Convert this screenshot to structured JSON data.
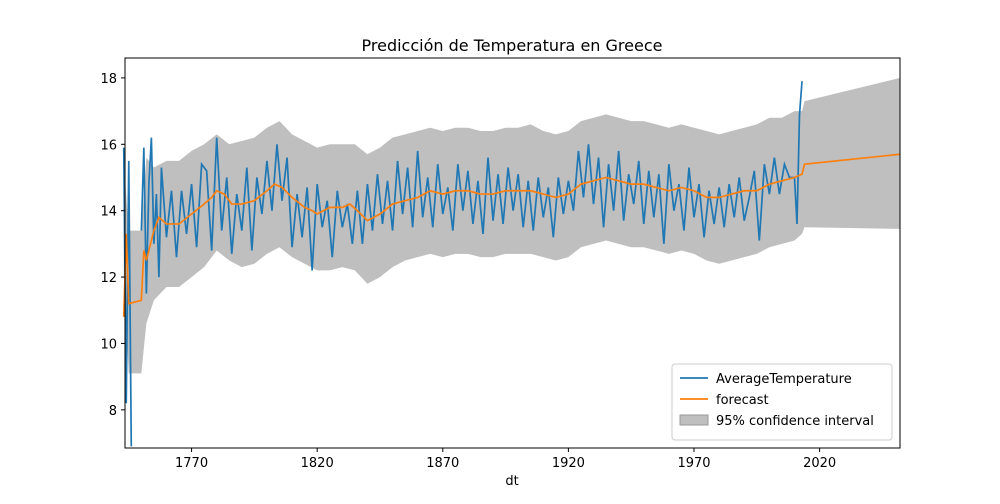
{
  "chart_data": {
    "type": "line",
    "title": "Predicción de Temperatura en Greece",
    "x_label": "dt",
    "xlim": [
      1743.5,
      2052
    ],
    "ylim": [
      6.85,
      18.6
    ],
    "xticks": [
      1770,
      1820,
      1870,
      1920,
      1970,
      2020
    ],
    "yticks": [
      8,
      10,
      12,
      14,
      16,
      18
    ],
    "legend": "lower right",
    "series": [
      {
        "name": "AverageTemperature",
        "color": "#1f77b4",
        "x": [
          1743,
          1744,
          1745,
          1746,
          1748,
          1750,
          1751,
          1752,
          1753,
          1754,
          1755,
          1756,
          1757,
          1758,
          1760,
          1762,
          1764,
          1766,
          1768,
          1770,
          1772,
          1774,
          1776,
          1778,
          1780,
          1782,
          1784,
          1786,
          1788,
          1790,
          1792,
          1794,
          1796,
          1798,
          1800,
          1802,
          1804,
          1806,
          1808,
          1810,
          1812,
          1814,
          1816,
          1818,
          1820,
          1822,
          1824,
          1826,
          1828,
          1830,
          1832,
          1834,
          1836,
          1838,
          1840,
          1842,
          1844,
          1846,
          1848,
          1850,
          1852,
          1854,
          1856,
          1858,
          1860,
          1862,
          1864,
          1866,
          1868,
          1870,
          1872,
          1874,
          1876,
          1878,
          1880,
          1882,
          1884,
          1886,
          1888,
          1890,
          1892,
          1894,
          1896,
          1898,
          1900,
          1902,
          1904,
          1906,
          1908,
          1910,
          1912,
          1914,
          1916,
          1918,
          1920,
          1922,
          1924,
          1926,
          1928,
          1930,
          1932,
          1934,
          1936,
          1938,
          1940,
          1942,
          1944,
          1946,
          1948,
          1950,
          1952,
          1954,
          1956,
          1958,
          1960,
          1962,
          1964,
          1966,
          1968,
          1970,
          1972,
          1974,
          1976,
          1978,
          1980,
          1982,
          1984,
          1986,
          1988,
          1990,
          1992,
          1994,
          1996,
          1998,
          2000,
          2002,
          2004,
          2006,
          2008,
          2010,
          2011,
          2012,
          2013
        ],
        "values": [
          15.9,
          8.2,
          15.5,
          6.9,
          null,
          13.4,
          15.9,
          11.5,
          14.8,
          16.2,
          13.0,
          14.5,
          12.0,
          15.3,
          13.2,
          14.6,
          12.6,
          14.6,
          13.3,
          14.8,
          12.9,
          15.4,
          15.2,
          12.8,
          16.2,
          13.4,
          15.0,
          12.7,
          14.5,
          13.4,
          15.3,
          12.8,
          15.0,
          13.9,
          15.5,
          14.0,
          16.0,
          14.3,
          15.6,
          12.9,
          14.5,
          13.2,
          14.7,
          12.2,
          14.8,
          13.5,
          14.3,
          12.6,
          14.6,
          13.5,
          14.2,
          13.0,
          14.6,
          13.0,
          14.8,
          13.4,
          15.1,
          13.6,
          14.9,
          13.4,
          15.5,
          13.9,
          15.3,
          13.5,
          15.8,
          13.8,
          15.0,
          13.5,
          15.4,
          13.9,
          14.7,
          13.4,
          15.4,
          14.0,
          15.2,
          13.6,
          14.9,
          13.3,
          15.6,
          13.7,
          15.1,
          13.6,
          15.3,
          14.0,
          15.1,
          13.5,
          14.9,
          13.4,
          15.0,
          13.8,
          14.7,
          13.2,
          15.0,
          13.9,
          14.9,
          14.0,
          15.8,
          14.4,
          16.0,
          14.2,
          15.6,
          13.5,
          15.4,
          14.0,
          15.8,
          13.7,
          15.1,
          14.2,
          15.5,
          13.6,
          15.2,
          13.8,
          15.1,
          13.0,
          15.4,
          14.0,
          14.8,
          13.4,
          15.3,
          13.8,
          14.8,
          13.2,
          14.6,
          13.6,
          14.7,
          13.5,
          14.8,
          13.8,
          15.0,
          13.7,
          14.4,
          15.2,
          13.1,
          15.4,
          14.5,
          15.6,
          14.5,
          15.4,
          15.0,
          15.0,
          13.6,
          16.9,
          17.9
        ]
      },
      {
        "name": "forecast",
        "color": "#ff7f0e",
        "x": [
          1743,
          1744,
          1745,
          1750,
          1751,
          1752,
          1755,
          1757,
          1760,
          1765,
          1770,
          1775,
          1778,
          1780,
          1783,
          1786,
          1790,
          1795,
          1800,
          1803,
          1806,
          1810,
          1815,
          1818,
          1820,
          1825,
          1830,
          1833,
          1836,
          1840,
          1845,
          1850,
          1855,
          1860,
          1865,
          1870,
          1875,
          1880,
          1885,
          1890,
          1895,
          1900,
          1905,
          1910,
          1915,
          1920,
          1925,
          1930,
          1935,
          1940,
          1945,
          1950,
          1955,
          1960,
          1965,
          1970,
          1975,
          1980,
          1985,
          1990,
          1995,
          2000,
          2005,
          2010,
          2013,
          2014,
          2052
        ],
        "values": [
          10.8,
          13.3,
          11.2,
          11.3,
          12.8,
          12.5,
          13.4,
          13.8,
          13.6,
          13.6,
          13.9,
          14.2,
          14.4,
          14.6,
          14.5,
          14.2,
          14.2,
          14.3,
          14.6,
          14.8,
          14.7,
          14.4,
          14.1,
          14.0,
          13.9,
          14.1,
          14.1,
          14.2,
          14.0,
          13.7,
          13.9,
          14.2,
          14.3,
          14.4,
          14.6,
          14.5,
          14.6,
          14.6,
          14.5,
          14.5,
          14.6,
          14.6,
          14.6,
          14.5,
          14.4,
          14.5,
          14.8,
          14.9,
          15.0,
          14.9,
          14.8,
          14.8,
          14.7,
          14.6,
          14.7,
          14.6,
          14.4,
          14.4,
          14.5,
          14.6,
          14.6,
          14.8,
          14.9,
          15.0,
          15.1,
          15.4,
          15.7
        ]
      },
      {
        "name": "95% confidence interval",
        "color": "#bfbfbf",
        "x": [
          1743,
          1745,
          1746,
          1750,
          1752,
          1755,
          1760,
          1765,
          1770,
          1775,
          1780,
          1785,
          1790,
          1795,
          1800,
          1805,
          1810,
          1815,
          1820,
          1825,
          1830,
          1835,
          1840,
          1845,
          1850,
          1855,
          1860,
          1865,
          1870,
          1875,
          1880,
          1885,
          1890,
          1895,
          1900,
          1905,
          1910,
          1915,
          1920,
          1925,
          1930,
          1935,
          1940,
          1945,
          1950,
          1955,
          1960,
          1965,
          1970,
          1975,
          1980,
          1985,
          1990,
          1995,
          2000,
          2005,
          2010,
          2013,
          2014,
          2052
        ],
        "upper": [
          15.5,
          13.4,
          13.4,
          13.4,
          15.6,
          15.3,
          15.5,
          15.5,
          15.8,
          16.0,
          16.3,
          16.0,
          16.1,
          16.2,
          16.5,
          16.7,
          16.3,
          16.1,
          15.9,
          16.0,
          16.0,
          16.0,
          15.7,
          15.9,
          16.2,
          16.3,
          16.4,
          16.5,
          16.4,
          16.5,
          16.5,
          16.4,
          16.4,
          16.5,
          16.5,
          16.6,
          16.4,
          16.3,
          16.4,
          16.7,
          16.8,
          16.9,
          16.8,
          16.7,
          16.7,
          16.6,
          16.5,
          16.6,
          16.5,
          16.4,
          16.3,
          16.4,
          16.5,
          16.6,
          16.8,
          16.8,
          17.0,
          17.0,
          17.3,
          18.0
        ],
        "lower": [
          12.0,
          9.1,
          9.1,
          9.1,
          10.6,
          11.3,
          11.7,
          11.7,
          12.0,
          12.3,
          12.8,
          12.5,
          12.3,
          12.4,
          12.7,
          12.9,
          12.6,
          12.4,
          12.2,
          12.2,
          12.3,
          12.2,
          11.8,
          12.0,
          12.3,
          12.5,
          12.6,
          12.7,
          12.6,
          12.7,
          12.7,
          12.6,
          12.6,
          12.7,
          12.7,
          12.7,
          12.6,
          12.5,
          12.6,
          12.9,
          13.0,
          13.1,
          13.0,
          12.9,
          12.9,
          12.8,
          12.7,
          12.8,
          12.7,
          12.5,
          12.4,
          12.5,
          12.6,
          12.7,
          12.9,
          13.0,
          13.1,
          13.3,
          13.5,
          13.45
        ]
      }
    ]
  }
}
